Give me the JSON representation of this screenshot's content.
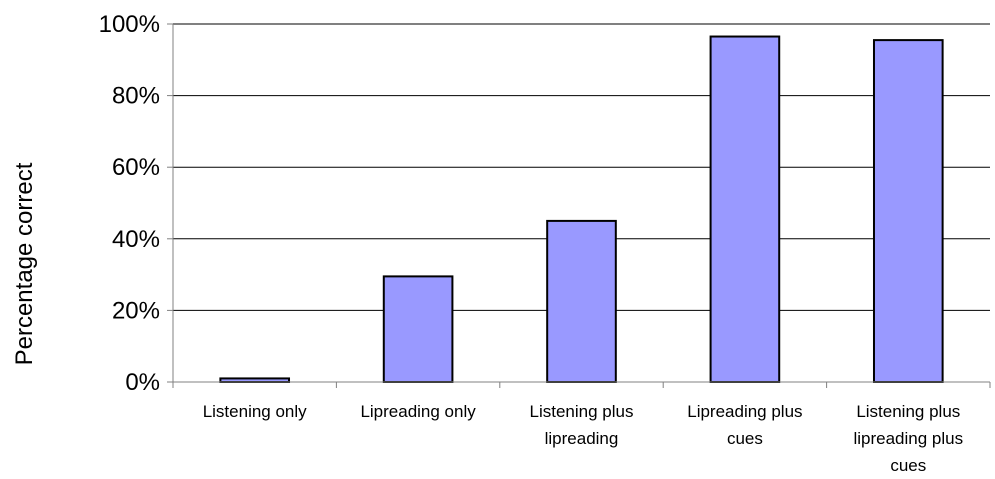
{
  "chart_data": {
    "type": "bar",
    "title": "",
    "xlabel": "",
    "ylabel": "Percentage correct",
    "ylim": [
      0,
      100
    ],
    "yticks": [
      "0%",
      "20%",
      "40%",
      "60%",
      "80%",
      "100%"
    ],
    "grid": true,
    "categories": [
      [
        "Listening only"
      ],
      [
        "Lipreading only"
      ],
      [
        "Listening plus",
        "lipreading"
      ],
      [
        "Lipreading plus",
        "cues"
      ],
      [
        "Listening plus",
        "lipreading plus",
        "cues"
      ]
    ],
    "values": [
      1,
      29.5,
      45,
      96.5,
      95.5
    ],
    "colors": {
      "bar_fill": "#9999ff",
      "bar_stroke": "#000000",
      "grid": "#000000",
      "axis": "#808080"
    }
  }
}
